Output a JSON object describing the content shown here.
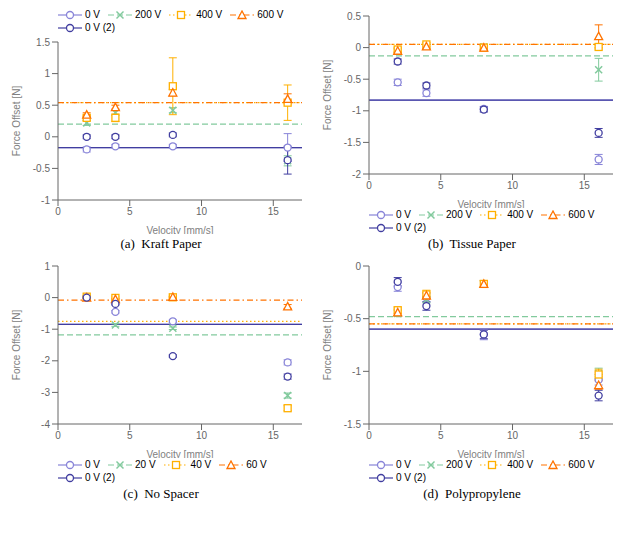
{
  "chart_data": [
    {
      "type": "scatter",
      "title": "(a)  Kraft Paper",
      "x_label": "Velocity [mm/s]",
      "y_label": "Force Offset [N]",
      "xlim": [
        0,
        17
      ],
      "xticks": [
        0,
        5,
        10,
        15
      ],
      "ylim": [
        -1,
        1.5
      ],
      "yticks": [
        -1,
        -0.5,
        0,
        0.5,
        1,
        1.5
      ],
      "grid": false,
      "legend": "upper left",
      "x": [
        2,
        4,
        8,
        16
      ],
      "series": [
        {
          "name": "0 V",
          "color": "#8884d8",
          "marker": "circle",
          "line_style": "solid",
          "values": [
            -0.2,
            -0.15,
            -0.15,
            -0.17
          ],
          "yerr": [
            0.04,
            0.03,
            0.03,
            0.22
          ],
          "mean": -0.17
        },
        {
          "name": "200 V",
          "color": "#82ca9d",
          "marker": "x",
          "line_style": "dashed",
          "values": [
            0.22,
            0.38,
            0.42,
            -0.38
          ],
          "yerr": [
            0.04,
            0.04,
            0.04,
            0.08
          ],
          "mean": 0.2
        },
        {
          "name": "400 V",
          "color": "#ffb000",
          "marker": "square",
          "line_style": "dotted",
          "values": [
            0.3,
            0.3,
            0.8,
            0.54
          ],
          "yerr": [
            0.04,
            0.06,
            0.45,
            0.28
          ],
          "mean": 0.54
        },
        {
          "name": "600 V",
          "color": "#ff7300",
          "marker": "triangle",
          "line_style": "dashdot",
          "values": [
            0.35,
            0.47,
            0.7,
            0.6
          ],
          "yerr": [
            0.03,
            0.03,
            0.05,
            0.08
          ],
          "mean": 0.54
        },
        {
          "name": "0 V (2)",
          "color": "#413ea0",
          "marker": "circle",
          "line_style": "solid",
          "values": [
            0.0,
            0.0,
            0.03,
            -0.37
          ],
          "yerr": [
            0.03,
            0.03,
            0.03,
            0.22
          ],
          "mean": -0.17
        }
      ]
    },
    {
      "type": "scatter",
      "title": "(b)  Tissue Paper",
      "x_label": "Velocity [mm/s]",
      "y_label": "Force Offset [N]",
      "xlim": [
        0,
        17
      ],
      "xticks": [
        0,
        5,
        10,
        15
      ],
      "ylim": [
        -2.0,
        0.5
      ],
      "yticks": [
        -2,
        -1.5,
        -1,
        -0.5,
        0,
        0.5
      ],
      "grid": false,
      "legend": "lower left",
      "x": [
        2,
        4,
        8,
        16
      ],
      "series": [
        {
          "name": "0 V",
          "color": "#8884d8",
          "marker": "circle",
          "line_style": "solid",
          "values": [
            -0.55,
            -0.72,
            -0.97,
            -1.77
          ],
          "yerr": [
            0.05,
            0.05,
            0.04,
            0.08
          ],
          "mean": -0.83
        },
        {
          "name": "200 V",
          "color": "#82ca9d",
          "marker": "x",
          "line_style": "dashed",
          "values": [
            -0.05,
            0.02,
            0.01,
            -0.35
          ],
          "yerr": [
            0.03,
            0.03,
            0.03,
            0.18
          ],
          "mean": -0.13
        },
        {
          "name": "400 V",
          "color": "#ffb000",
          "marker": "square",
          "line_style": "dotted",
          "values": [
            -0.03,
            0.05,
            0.0,
            0.01
          ],
          "yerr": [
            0.03,
            0.03,
            0.03,
            0.03
          ],
          "mean": 0.05
        },
        {
          "name": "600 V",
          "color": "#ff7300",
          "marker": "triangle",
          "line_style": "dashdot",
          "values": [
            -0.05,
            0.02,
            0.0,
            0.18
          ],
          "yerr": [
            0.03,
            0.03,
            0.03,
            0.18
          ],
          "mean": 0.05
        },
        {
          "name": "0 V (2)",
          "color": "#413ea0",
          "marker": "circle",
          "line_style": "solid",
          "values": [
            -0.22,
            -0.6,
            -0.98,
            -1.35
          ],
          "yerr": [
            0.04,
            0.04,
            0.04,
            0.07
          ],
          "mean": -0.83
        }
      ]
    },
    {
      "type": "scatter",
      "title": "(c)  No Spacer",
      "x_label": "Velocity [mm/s]",
      "y_label": "Force Offset [N]",
      "xlim": [
        0,
        17
      ],
      "xticks": [
        0,
        5,
        10,
        15
      ],
      "ylim": [
        -4.0,
        1.0
      ],
      "yticks": [
        -4,
        -3,
        -2,
        -1,
        0,
        1
      ],
      "grid": false,
      "legend": "lower left",
      "x": [
        2,
        4,
        8,
        16
      ],
      "series": [
        {
          "name": "0 V",
          "color": "#8884d8",
          "marker": "circle",
          "line_style": "solid",
          "values": [
            0.02,
            -0.45,
            -0.75,
            -2.05
          ],
          "yerr": [
            0.04,
            0.04,
            0.04,
            0.08
          ],
          "mean": -0.85
        },
        {
          "name": "20 V",
          "color": "#82ca9d",
          "marker": "x",
          "line_style": "dashed",
          "values": [
            0.02,
            -0.87,
            -0.97,
            -3.1
          ],
          "yerr": [
            0.03,
            0.04,
            0.04,
            0.08
          ],
          "mean": -1.18
        },
        {
          "name": "40 V",
          "color": "#ffb000",
          "marker": "square",
          "line_style": "dotted",
          "values": [
            0.03,
            -0.01,
            0.01,
            -3.5
          ],
          "yerr": [
            0.03,
            0.03,
            0.03,
            0.08
          ],
          "mean": -0.75
        },
        {
          "name": "60 V",
          "color": "#ff7300",
          "marker": "triangle",
          "line_style": "dashdot",
          "values": [
            0.0,
            -0.05,
            0.02,
            -0.28
          ],
          "yerr": [
            0.02,
            0.02,
            0.02,
            0.06
          ],
          "mean": -0.08
        },
        {
          "name": "0 V (2)",
          "color": "#413ea0",
          "marker": "circle",
          "line_style": "solid",
          "values": [
            0.0,
            -0.2,
            -1.85,
            -2.5
          ],
          "yerr": [
            0.03,
            0.03,
            0.04,
            0.08
          ],
          "mean": -0.85
        }
      ]
    },
    {
      "type": "scatter",
      "title": "(d)  Polypropylene",
      "x_label": "Velocity [mm/s]",
      "y_label": "Force Offset [N]",
      "xlim": [
        0,
        17
      ],
      "xticks": [
        0,
        5,
        10,
        15
      ],
      "ylim": [
        -1.5,
        0.0
      ],
      "yticks": [
        -1.5,
        -1,
        -0.5,
        0
      ],
      "grid": false,
      "legend": "lower left",
      "x": [
        2,
        4,
        8,
        16
      ],
      "series": [
        {
          "name": "0 V",
          "color": "#8884d8",
          "marker": "circle",
          "line_style": "solid",
          "values": [
            -0.2,
            -0.3,
            -0.65,
            -1.08
          ],
          "yerr": [
            0.04,
            0.04,
            0.05,
            0.05
          ],
          "mean": -0.6
        },
        {
          "name": "200 V",
          "color": "#82ca9d",
          "marker": "x",
          "line_style": "dashed",
          "values": [
            -0.45,
            -0.32,
            -0.17,
            -1.02
          ],
          "yerr": [
            0.03,
            0.03,
            0.03,
            0.05
          ],
          "mean": -0.48
        },
        {
          "name": "400 V",
          "color": "#ffb000",
          "marker": "square",
          "line_style": "dotted",
          "values": [
            -0.42,
            -0.27,
            -0.17,
            -1.03
          ],
          "yerr": [
            0.03,
            0.04,
            0.03,
            0.05
          ],
          "mean": -0.55
        },
        {
          "name": "600 V",
          "color": "#ff7300",
          "marker": "triangle",
          "line_style": "dashdot",
          "values": [
            -0.44,
            -0.28,
            -0.17,
            -1.13
          ],
          "yerr": [
            0.03,
            0.03,
            0.03,
            0.04
          ],
          "mean": -0.55
        },
        {
          "name": "0 V (2)",
          "color": "#413ea0",
          "marker": "circle",
          "line_style": "solid",
          "values": [
            -0.15,
            -0.38,
            -0.65,
            -1.23
          ],
          "yerr": [
            0.04,
            0.04,
            0.04,
            0.05
          ],
          "mean": -0.6
        }
      ]
    }
  ]
}
